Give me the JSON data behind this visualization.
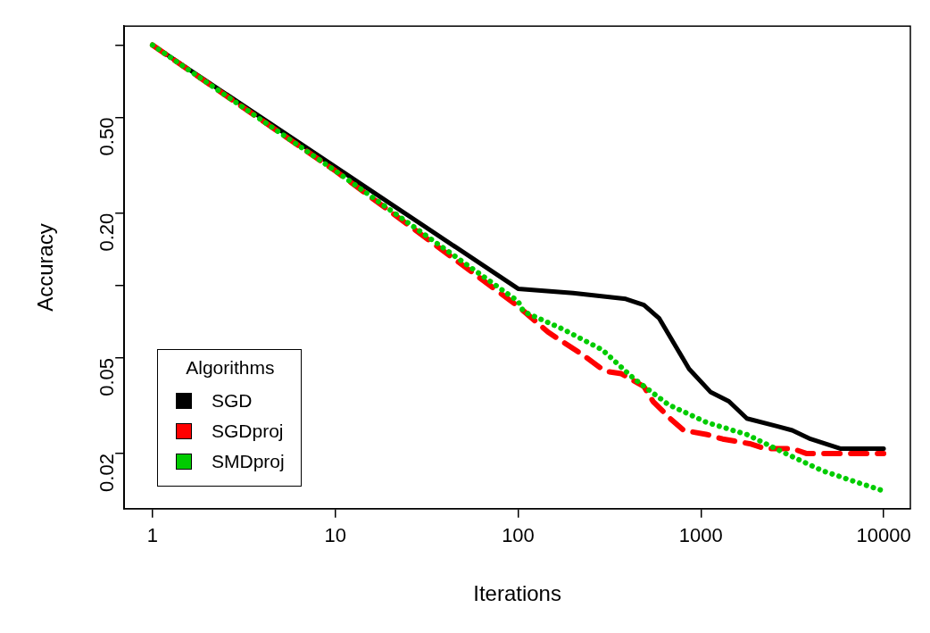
{
  "chart_data": {
    "type": "line",
    "xlabel": "Iterations",
    "ylabel": "Accuracy",
    "legend_title": "Algorithms",
    "legend": "bottom left",
    "log": "xy",
    "grid": false,
    "marker": "none",
    "xlim": [
      0.7,
      14000
    ],
    "xticks": [
      1,
      10,
      100,
      1000,
      10000
    ],
    "ylim": [
      0.0118,
      1.2
    ],
    "yticks": [
      {
        "value": 0.02,
        "label": "0.02"
      },
      {
        "value": 0.05,
        "label": "0.05"
      },
      {
        "value": 0.1,
        "label": null
      },
      {
        "value": 0.2,
        "label": "0.20"
      },
      {
        "value": 0.5,
        "label": "0.50"
      },
      {
        "value": 1,
        "label": null
      }
    ],
    "series": [
      {
        "name": "SGD",
        "color": "#000000",
        "line_style": "solid",
        "x": [
          1,
          100,
          200,
          388,
          488,
          592,
          862,
          1133,
          1423,
          1786,
          2606,
          3162,
          3981,
          5785,
          10000
        ],
        "values": [
          1.0,
          0.097,
          0.093,
          0.088,
          0.083,
          0.073,
          0.045,
          0.036,
          0.033,
          0.028,
          0.026,
          0.025,
          0.023,
          0.021,
          0.021
        ]
      },
      {
        "name": "SGDproj",
        "color": "#ff0000",
        "line_style": "dashed",
        "x": [
          1,
          10,
          100,
          146,
          230,
          299,
          367,
          488,
          547,
          679,
          805,
          1084,
          1315,
          1849,
          2245,
          3162,
          3800,
          5370,
          6470,
          10000
        ],
        "values": [
          1.0,
          0.3,
          0.082,
          0.064,
          0.051,
          0.044,
          0.043,
          0.038,
          0.033,
          0.028,
          0.025,
          0.024,
          0.023,
          0.022,
          0.021,
          0.021,
          0.02,
          0.02,
          0.02,
          0.02
        ]
      },
      {
        "name": "SMDproj",
        "color": "#00cc00",
        "line_style": "dotted",
        "x": [
          1,
          10,
          100,
          107,
          175,
          289,
          430,
          663,
          1071,
          1787,
          2919,
          4603,
          7516,
          10000
        ],
        "values": [
          1.0,
          0.3,
          0.086,
          0.078,
          0.066,
          0.054,
          0.041,
          0.032,
          0.027,
          0.024,
          0.02,
          0.017,
          0.015,
          0.014
        ]
      }
    ]
  }
}
